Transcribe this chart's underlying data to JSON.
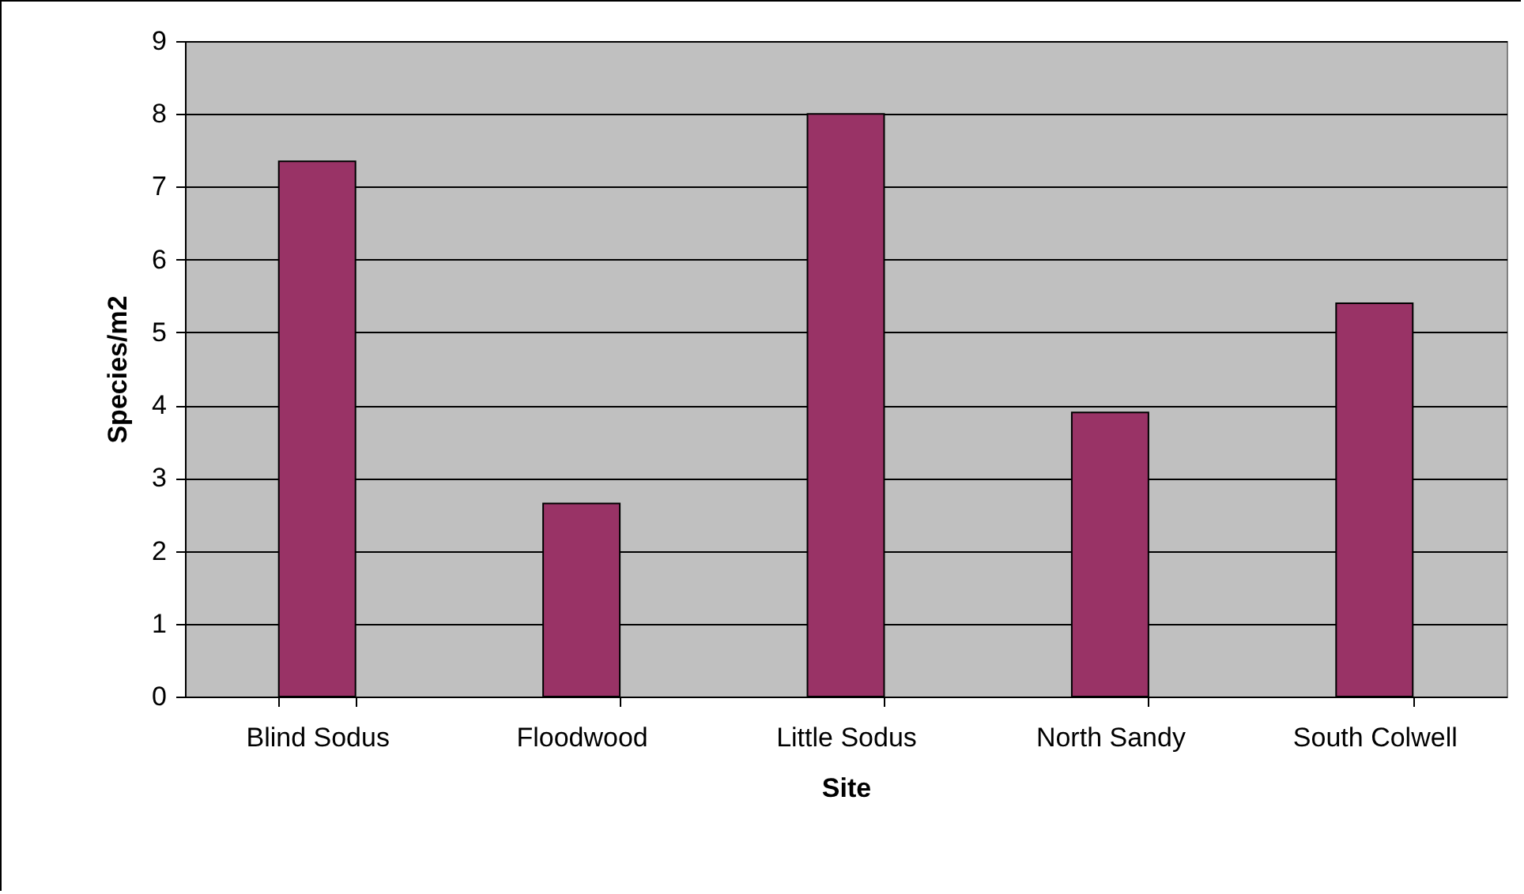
{
  "chart_data": {
    "type": "bar",
    "xlabel": "Site",
    "ylabel": "Species/m2",
    "categories": [
      "Blind Sodus",
      "Floodwood",
      "Little Sodus",
      "North Sandy",
      "South Colwell"
    ],
    "values": [
      7.35,
      2.65,
      8.0,
      3.9,
      5.4
    ],
    "color": "#993366",
    "ylim": [
      0,
      9
    ],
    "yticks": [
      0,
      1,
      2,
      3,
      4,
      5,
      6,
      7,
      8,
      9
    ],
    "grid": "y"
  }
}
